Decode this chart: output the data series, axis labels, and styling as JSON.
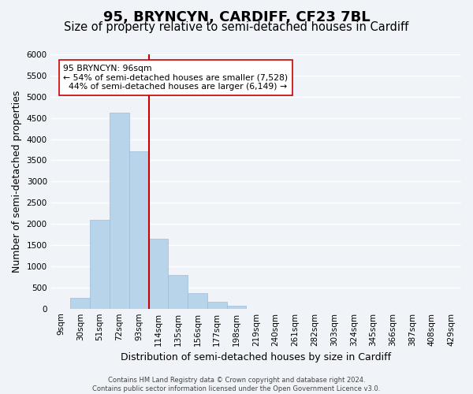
{
  "title": "95, BRYNCYN, CARDIFF, CF23 7BL",
  "subtitle": "Size of property relative to semi-detached houses in Cardiff",
  "xlabel": "Distribution of semi-detached houses by size in Cardiff",
  "ylabel": "Number of semi-detached properties",
  "footer_line1": "Contains HM Land Registry data © Crown copyright and database right 2024.",
  "footer_line2": "Contains public sector information licensed under the Open Government Licence v3.0.",
  "bin_labels": [
    "9sqm",
    "30sqm",
    "51sqm",
    "72sqm",
    "93sqm",
    "114sqm",
    "135sqm",
    "156sqm",
    "177sqm",
    "198sqm",
    "219sqm",
    "240sqm",
    "261sqm",
    "282sqm",
    "303sqm",
    "324sqm",
    "345sqm",
    "366sqm",
    "387sqm",
    "408sqm",
    "429sqm"
  ],
  "bar_values": [
    0,
    250,
    2100,
    4620,
    3720,
    1650,
    790,
    370,
    170,
    70,
    0,
    0,
    0,
    0,
    0,
    0,
    0,
    0,
    0,
    0,
    0
  ],
  "bar_color": "#b8d4ea",
  "bar_edge_color": "#9bbcd8",
  "property_label": "95 BRYNCYN: 96sqm",
  "pct_smaller": 54,
  "count_smaller": 7528,
  "pct_larger": 44,
  "count_larger": 6149,
  "vline_x": 4.5,
  "vline_color": "#cc0000",
  "annotation_box_color": "#ffffff",
  "annotation_box_edge": "#cc0000",
  "ylim": [
    0,
    6000
  ],
  "yticks": [
    0,
    500,
    1000,
    1500,
    2000,
    2500,
    3000,
    3500,
    4000,
    4500,
    5000,
    5500,
    6000
  ],
  "background_color": "#f0f4f8",
  "plot_background_color": "#f0f4f8",
  "grid_color": "#ffffff",
  "title_fontsize": 13,
  "subtitle_fontsize": 10.5,
  "axis_label_fontsize": 9,
  "tick_fontsize": 7.5,
  "footer_fontsize": 6.0
}
